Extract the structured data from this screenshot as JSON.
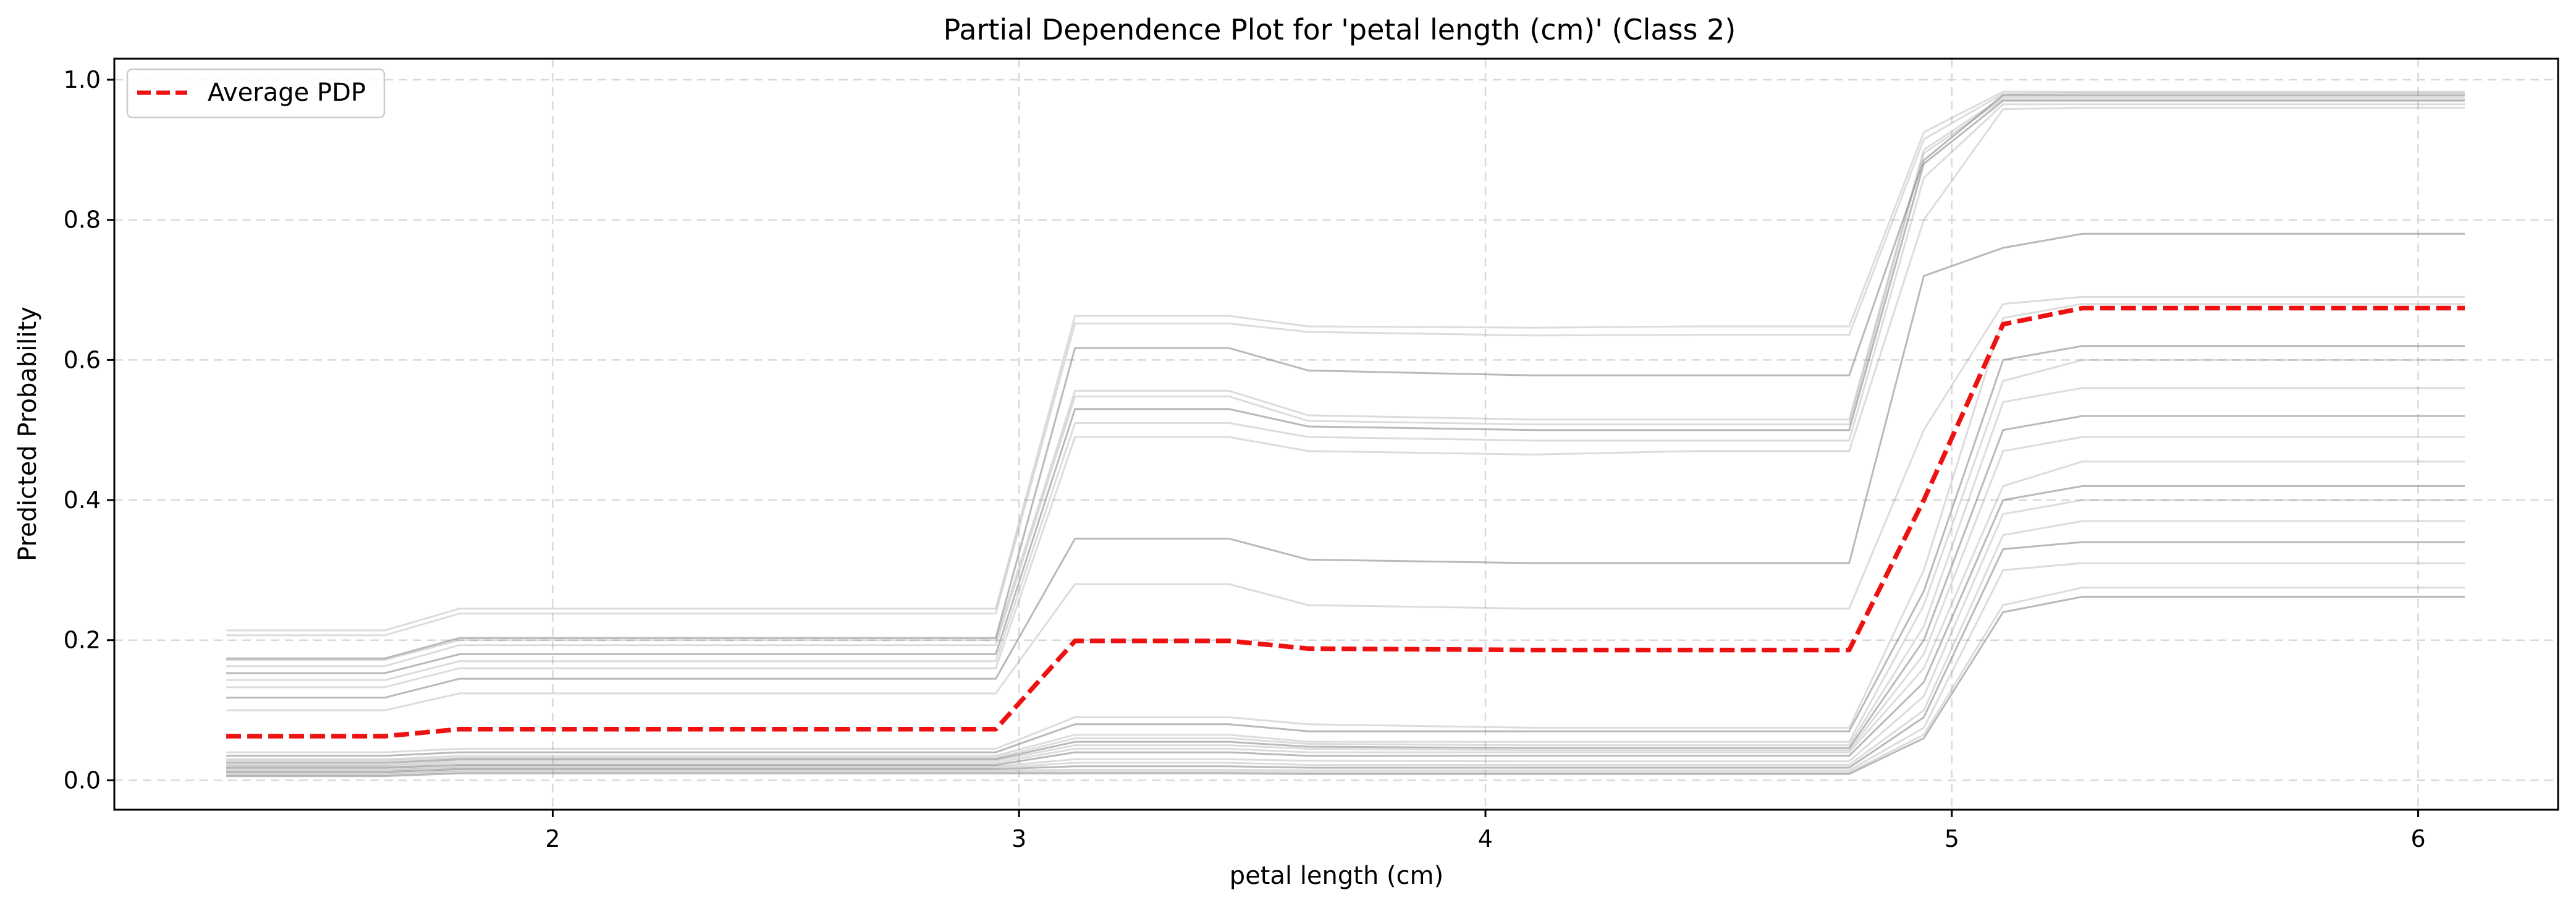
{
  "chart_data": {
    "type": "line",
    "title": "Partial Dependence Plot for 'petal length (cm)' (Class 2)",
    "xlabel": "petal length (cm)",
    "ylabel": "Predicted Probability",
    "xlim": [
      1.06,
      6.3
    ],
    "ylim": [
      -0.042,
      1.03
    ],
    "xticks": [
      2,
      3,
      4,
      5,
      6
    ],
    "yticks": [
      0.0,
      0.2,
      0.4,
      0.6,
      0.8,
      1.0
    ],
    "grid": true,
    "legend": {
      "placement": "top-left",
      "entries": [
        "Average PDP"
      ]
    },
    "colors": {
      "pdp": "#ee1111",
      "ice": "#808080",
      "grid": "#d9d9d9"
    },
    "x": [
      1.3,
      1.64,
      1.8,
      2.95,
      3.12,
      3.45,
      3.62,
      4.1,
      4.45,
      4.78,
      4.94,
      5.11,
      5.28,
      5.6,
      6.1
    ],
    "series": [
      {
        "name": "Average PDP",
        "values": [
          0.063,
          0.063,
          0.073,
          0.073,
          0.199,
          0.199,
          0.188,
          0.186,
          0.186,
          0.186,
          0.4,
          0.651,
          0.674,
          0.674,
          0.674
        ]
      },
      {
        "values": [
          0.214,
          0.214,
          0.245,
          0.245,
          0.663,
          0.663,
          0.648,
          0.646,
          0.648,
          0.648,
          0.925,
          0.983,
          0.983,
          0.983,
          0.983
        ]
      },
      {
        "values": [
          0.207,
          0.207,
          0.238,
          0.238,
          0.652,
          0.652,
          0.64,
          0.635,
          0.636,
          0.636,
          0.915,
          0.98,
          0.981,
          0.981,
          0.981
        ]
      },
      {
        "values": [
          0.174,
          0.174,
          0.203,
          0.203,
          0.617,
          0.617,
          0.585,
          0.578,
          0.578,
          0.578,
          0.885,
          0.978,
          0.978,
          0.978,
          0.978
        ]
      },
      {
        "values": [
          0.172,
          0.172,
          0.2,
          0.2,
          0.556,
          0.556,
          0.521,
          0.515,
          0.515,
          0.515,
          0.9,
          0.975,
          0.975,
          0.975,
          0.975
        ]
      },
      {
        "values": [
          0.163,
          0.163,
          0.193,
          0.193,
          0.548,
          0.548,
          0.513,
          0.508,
          0.508,
          0.508,
          0.895,
          0.972,
          0.972,
          0.972,
          0.972
        ]
      },
      {
        "values": [
          0.153,
          0.153,
          0.18,
          0.18,
          0.53,
          0.53,
          0.505,
          0.5,
          0.5,
          0.5,
          0.88,
          0.97,
          0.97,
          0.97,
          0.97
        ]
      },
      {
        "values": [
          0.143,
          0.143,
          0.17,
          0.17,
          0.51,
          0.51,
          0.49,
          0.485,
          0.485,
          0.485,
          0.86,
          0.965,
          0.965,
          0.965,
          0.965
        ]
      },
      {
        "values": [
          0.133,
          0.133,
          0.16,
          0.16,
          0.49,
          0.49,
          0.47,
          0.465,
          0.47,
          0.47,
          0.8,
          0.958,
          0.96,
          0.96,
          0.96
        ]
      },
      {
        "values": [
          0.118,
          0.118,
          0.145,
          0.145,
          0.345,
          0.345,
          0.315,
          0.31,
          0.31,
          0.31,
          0.72,
          0.76,
          0.78,
          0.78,
          0.78
        ]
      },
      {
        "values": [
          0.1,
          0.1,
          0.124,
          0.124,
          0.28,
          0.28,
          0.25,
          0.245,
          0.245,
          0.245,
          0.5,
          0.68,
          0.69,
          0.69,
          0.69
        ]
      },
      {
        "values": [
          0.04,
          0.04,
          0.045,
          0.045,
          0.09,
          0.09,
          0.08,
          0.075,
          0.075,
          0.075,
          0.3,
          0.66,
          0.68,
          0.68,
          0.68
        ]
      },
      {
        "values": [
          0.035,
          0.035,
          0.04,
          0.04,
          0.08,
          0.08,
          0.07,
          0.07,
          0.07,
          0.07,
          0.27,
          0.6,
          0.62,
          0.62,
          0.62
        ]
      },
      {
        "values": [
          0.03,
          0.03,
          0.035,
          0.035,
          0.065,
          0.065,
          0.055,
          0.055,
          0.055,
          0.055,
          0.25,
          0.57,
          0.6,
          0.6,
          0.6
        ]
      },
      {
        "values": [
          0.028,
          0.028,
          0.032,
          0.032,
          0.06,
          0.06,
          0.052,
          0.05,
          0.05,
          0.05,
          0.22,
          0.54,
          0.56,
          0.56,
          0.56
        ]
      },
      {
        "values": [
          0.025,
          0.025,
          0.03,
          0.03,
          0.055,
          0.055,
          0.048,
          0.046,
          0.046,
          0.046,
          0.2,
          0.5,
          0.52,
          0.52,
          0.52
        ]
      },
      {
        "values": [
          0.022,
          0.022,
          0.028,
          0.028,
          0.05,
          0.05,
          0.045,
          0.043,
          0.043,
          0.043,
          0.18,
          0.47,
          0.49,
          0.49,
          0.49
        ]
      },
      {
        "values": [
          0.02,
          0.02,
          0.025,
          0.025,
          0.045,
          0.045,
          0.04,
          0.04,
          0.04,
          0.04,
          0.16,
          0.42,
          0.455,
          0.455,
          0.455
        ]
      },
      {
        "values": [
          0.018,
          0.018,
          0.022,
          0.022,
          0.04,
          0.04,
          0.035,
          0.035,
          0.035,
          0.035,
          0.14,
          0.4,
          0.42,
          0.42,
          0.42
        ]
      },
      {
        "values": [
          0.016,
          0.016,
          0.02,
          0.02,
          0.03,
          0.03,
          0.028,
          0.027,
          0.027,
          0.027,
          0.12,
          0.38,
          0.4,
          0.4,
          0.4
        ]
      },
      {
        "values": [
          0.014,
          0.014,
          0.018,
          0.018,
          0.025,
          0.025,
          0.022,
          0.022,
          0.022,
          0.022,
          0.1,
          0.35,
          0.37,
          0.37,
          0.37
        ]
      },
      {
        "values": [
          0.012,
          0.012,
          0.016,
          0.016,
          0.02,
          0.02,
          0.018,
          0.018,
          0.018,
          0.018,
          0.09,
          0.33,
          0.34,
          0.34,
          0.34
        ]
      },
      {
        "values": [
          0.01,
          0.01,
          0.014,
          0.014,
          0.015,
          0.015,
          0.014,
          0.014,
          0.014,
          0.014,
          0.075,
          0.3,
          0.31,
          0.31,
          0.31
        ]
      },
      {
        "values": [
          0.008,
          0.008,
          0.012,
          0.012,
          0.012,
          0.012,
          0.011,
          0.011,
          0.011,
          0.011,
          0.065,
          0.25,
          0.275,
          0.275,
          0.275
        ]
      },
      {
        "values": [
          0.006,
          0.006,
          0.01,
          0.01,
          0.01,
          0.01,
          0.009,
          0.009,
          0.009,
          0.009,
          0.06,
          0.24,
          0.262,
          0.262,
          0.262
        ]
      }
    ]
  }
}
